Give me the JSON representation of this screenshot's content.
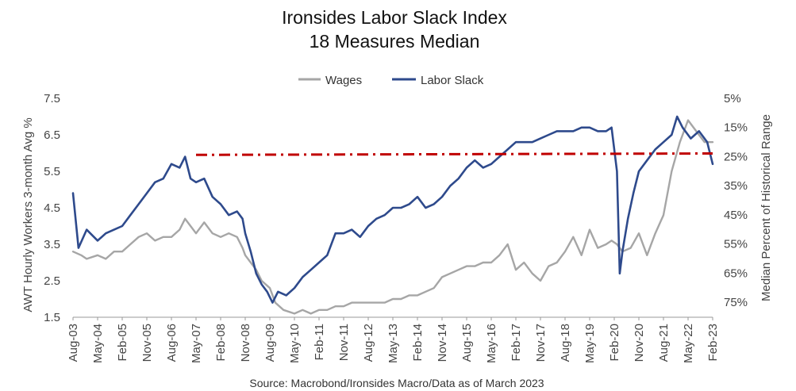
{
  "chart_data": {
    "type": "line",
    "title": "Ironsides Labor Slack Index",
    "subtitle": "18 Measures Median",
    "ylabel": "AWT Hourly Workers 3-month Avg %",
    "y2label": "Median Percent of Historical Range",
    "source": "Source: Macrobond/Ironsides Macro/Data as of March 2023",
    "ylim": [
      1.5,
      7.5
    ],
    "yticks": [
      "7.5",
      "6.5",
      "5.5",
      "4.5",
      "3.5",
      "2.5",
      "1.5"
    ],
    "y2ticks": [
      "5%",
      "15%",
      "25%",
      "35%",
      "45%",
      "55%",
      "65%",
      "75%"
    ],
    "y2lim_top_to_bottom": [
      5,
      75
    ],
    "x_start": "2003-08",
    "x_end": "2023-02",
    "xticks": [
      "Aug-03",
      "May-04",
      "Feb-05",
      "Nov-05",
      "Aug-06",
      "May-07",
      "Feb-08",
      "Nov-08",
      "Aug-09",
      "May-10",
      "Feb-11",
      "Nov-11",
      "Aug-12",
      "May-13",
      "Feb-14",
      "Nov-14",
      "Aug-15",
      "May-16",
      "Feb-17",
      "Nov-17",
      "Aug-18",
      "May-19",
      "Feb-20",
      "Nov-20",
      "Aug-21",
      "May-22",
      "Feb-23"
    ],
    "grid": false,
    "legend_position": "top-center",
    "series": [
      {
        "name": "Wages",
        "axis": "left",
        "color": "#a6a6a6",
        "points": [
          [
            "2003-08",
            3.3
          ],
          [
            "2003-11",
            3.2
          ],
          [
            "2004-01",
            3.1
          ],
          [
            "2004-05",
            3.2
          ],
          [
            "2004-08",
            3.1
          ],
          [
            "2004-11",
            3.3
          ],
          [
            "2005-02",
            3.3
          ],
          [
            "2005-05",
            3.5
          ],
          [
            "2005-08",
            3.7
          ],
          [
            "2005-11",
            3.8
          ],
          [
            "2006-02",
            3.6
          ],
          [
            "2006-05",
            3.7
          ],
          [
            "2006-08",
            3.7
          ],
          [
            "2006-11",
            3.9
          ],
          [
            "2007-01",
            4.2
          ],
          [
            "2007-03",
            4.0
          ],
          [
            "2007-05",
            3.8
          ],
          [
            "2007-08",
            4.1
          ],
          [
            "2007-11",
            3.8
          ],
          [
            "2008-02",
            3.7
          ],
          [
            "2008-05",
            3.8
          ],
          [
            "2008-08",
            3.7
          ],
          [
            "2008-10",
            3.4
          ],
          [
            "2008-11",
            3.2
          ],
          [
            "2009-01",
            3.0
          ],
          [
            "2009-03",
            2.8
          ],
          [
            "2009-05",
            2.5
          ],
          [
            "2009-08",
            2.3
          ],
          [
            "2009-10",
            1.9
          ],
          [
            "2010-01",
            1.7
          ],
          [
            "2010-05",
            1.6
          ],
          [
            "2010-08",
            1.7
          ],
          [
            "2010-11",
            1.6
          ],
          [
            "2011-02",
            1.7
          ],
          [
            "2011-05",
            1.7
          ],
          [
            "2011-08",
            1.8
          ],
          [
            "2011-11",
            1.8
          ],
          [
            "2012-02",
            1.9
          ],
          [
            "2012-05",
            1.9
          ],
          [
            "2012-08",
            1.9
          ],
          [
            "2012-11",
            1.9
          ],
          [
            "2013-02",
            1.9
          ],
          [
            "2013-05",
            2.0
          ],
          [
            "2013-08",
            2.0
          ],
          [
            "2013-11",
            2.1
          ],
          [
            "2014-02",
            2.1
          ],
          [
            "2014-05",
            2.2
          ],
          [
            "2014-08",
            2.3
          ],
          [
            "2014-11",
            2.6
          ],
          [
            "2015-02",
            2.7
          ],
          [
            "2015-05",
            2.8
          ],
          [
            "2015-08",
            2.9
          ],
          [
            "2015-11",
            2.9
          ],
          [
            "2016-02",
            3.0
          ],
          [
            "2016-05",
            3.0
          ],
          [
            "2016-08",
            3.2
          ],
          [
            "2016-11",
            3.5
          ],
          [
            "2017-02",
            2.8
          ],
          [
            "2017-05",
            3.0
          ],
          [
            "2017-08",
            2.7
          ],
          [
            "2017-11",
            2.5
          ],
          [
            "2018-02",
            2.9
          ],
          [
            "2018-05",
            3.0
          ],
          [
            "2018-08",
            3.3
          ],
          [
            "2018-11",
            3.7
          ],
          [
            "2019-02",
            3.2
          ],
          [
            "2019-05",
            3.9
          ],
          [
            "2019-08",
            3.4
          ],
          [
            "2019-11",
            3.5
          ],
          [
            "2020-01",
            3.6
          ],
          [
            "2020-03",
            3.5
          ],
          [
            "2020-05",
            3.3
          ],
          [
            "2020-08",
            3.4
          ],
          [
            "2020-11",
            3.8
          ],
          [
            "2021-02",
            3.2
          ],
          [
            "2021-05",
            3.8
          ],
          [
            "2021-08",
            4.3
          ],
          [
            "2021-11",
            5.5
          ],
          [
            "2022-02",
            6.3
          ],
          [
            "2022-05",
            6.9
          ],
          [
            "2022-08",
            6.6
          ],
          [
            "2022-11",
            6.3
          ],
          [
            "2023-02",
            6.3
          ]
        ]
      },
      {
        "name": "Labor Slack",
        "axis": "left",
        "color": "#2e4a8c",
        "points": [
          [
            "2003-08",
            4.9
          ],
          [
            "2003-10",
            3.4
          ],
          [
            "2004-01",
            3.9
          ],
          [
            "2004-05",
            3.6
          ],
          [
            "2004-08",
            3.8
          ],
          [
            "2004-11",
            3.9
          ],
          [
            "2005-02",
            4.0
          ],
          [
            "2005-05",
            4.3
          ],
          [
            "2005-08",
            4.6
          ],
          [
            "2005-11",
            4.9
          ],
          [
            "2006-02",
            5.2
          ],
          [
            "2006-05",
            5.3
          ],
          [
            "2006-08",
            5.7
          ],
          [
            "2006-11",
            5.6
          ],
          [
            "2007-01",
            5.9
          ],
          [
            "2007-03",
            5.3
          ],
          [
            "2007-05",
            5.2
          ],
          [
            "2007-08",
            5.3
          ],
          [
            "2007-11",
            4.8
          ],
          [
            "2008-02",
            4.6
          ],
          [
            "2008-05",
            4.3
          ],
          [
            "2008-08",
            4.4
          ],
          [
            "2008-10",
            4.2
          ],
          [
            "2008-11",
            3.8
          ],
          [
            "2009-01",
            3.3
          ],
          [
            "2009-03",
            2.7
          ],
          [
            "2009-05",
            2.4
          ],
          [
            "2009-07",
            2.2
          ],
          [
            "2009-09",
            1.9
          ],
          [
            "2009-11",
            2.2
          ],
          [
            "2010-02",
            2.1
          ],
          [
            "2010-05",
            2.3
          ],
          [
            "2010-08",
            2.6
          ],
          [
            "2010-11",
            2.8
          ],
          [
            "2011-02",
            3.0
          ],
          [
            "2011-05",
            3.2
          ],
          [
            "2011-08",
            3.8
          ],
          [
            "2011-11",
            3.8
          ],
          [
            "2012-02",
            3.9
          ],
          [
            "2012-05",
            3.7
          ],
          [
            "2012-08",
            4.0
          ],
          [
            "2012-11",
            4.2
          ],
          [
            "2013-02",
            4.3
          ],
          [
            "2013-05",
            4.5
          ],
          [
            "2013-08",
            4.5
          ],
          [
            "2013-11",
            4.6
          ],
          [
            "2014-02",
            4.8
          ],
          [
            "2014-05",
            4.5
          ],
          [
            "2014-08",
            4.6
          ],
          [
            "2014-11",
            4.8
          ],
          [
            "2015-02",
            5.1
          ],
          [
            "2015-05",
            5.3
          ],
          [
            "2015-08",
            5.6
          ],
          [
            "2015-11",
            5.8
          ],
          [
            "2016-02",
            5.6
          ],
          [
            "2016-05",
            5.7
          ],
          [
            "2016-08",
            5.9
          ],
          [
            "2016-11",
            6.1
          ],
          [
            "2017-02",
            6.3
          ],
          [
            "2017-05",
            6.3
          ],
          [
            "2017-08",
            6.3
          ],
          [
            "2017-11",
            6.4
          ],
          [
            "2018-02",
            6.5
          ],
          [
            "2018-05",
            6.6
          ],
          [
            "2018-08",
            6.6
          ],
          [
            "2018-11",
            6.6
          ],
          [
            "2019-02",
            6.7
          ],
          [
            "2019-05",
            6.7
          ],
          [
            "2019-08",
            6.6
          ],
          [
            "2019-11",
            6.6
          ],
          [
            "2020-01",
            6.7
          ],
          [
            "2020-03",
            5.5
          ],
          [
            "2020-04",
            2.7
          ],
          [
            "2020-05",
            3.3
          ],
          [
            "2020-07",
            4.2
          ],
          [
            "2020-09",
            4.9
          ],
          [
            "2020-11",
            5.5
          ],
          [
            "2021-02",
            5.8
          ],
          [
            "2021-05",
            6.1
          ],
          [
            "2021-08",
            6.3
          ],
          [
            "2021-11",
            6.5
          ],
          [
            "2022-01",
            7.0
          ],
          [
            "2022-03",
            6.7
          ],
          [
            "2022-06",
            6.4
          ],
          [
            "2022-09",
            6.6
          ],
          [
            "2022-12",
            6.3
          ],
          [
            "2023-02",
            5.7
          ]
        ]
      },
      {
        "name": "",
        "axis": "left",
        "style": "dash-dot",
        "color": "#c00000",
        "points": [
          [
            "2007-05",
            5.95
          ],
          [
            "2023-02",
            5.99
          ]
        ]
      }
    ]
  }
}
